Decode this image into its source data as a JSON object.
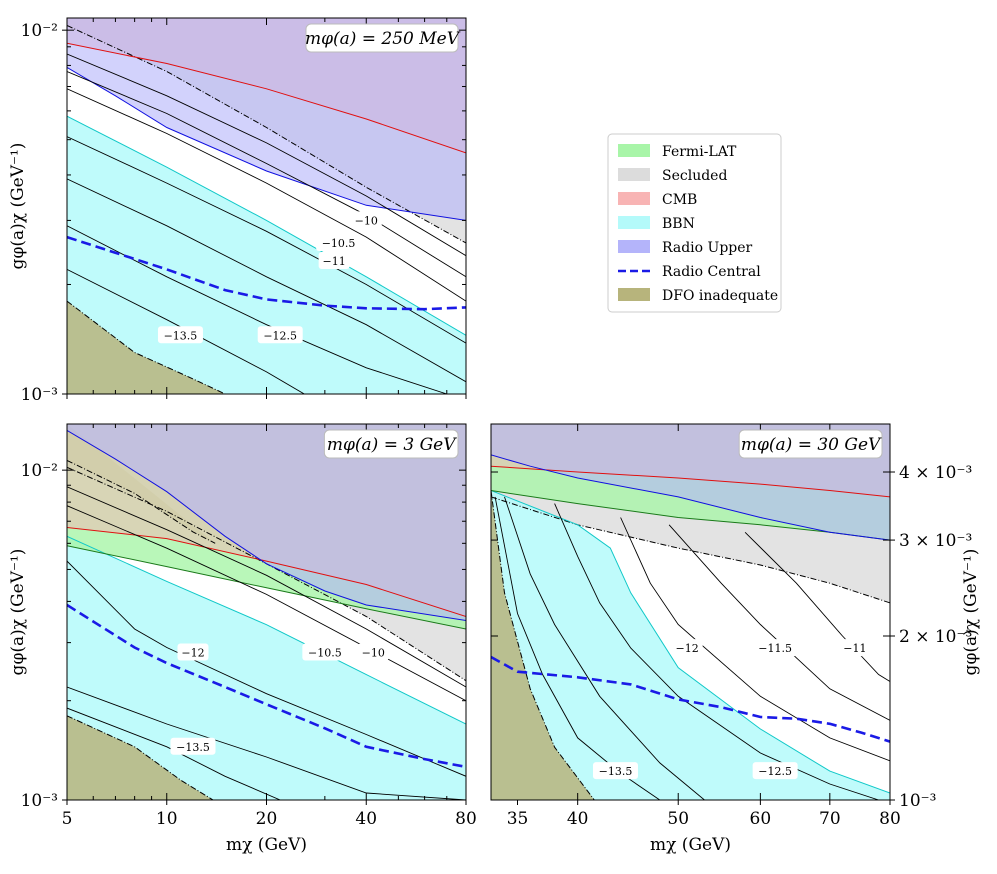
{
  "figure": {
    "xlabel": "mχ (GeV)",
    "ylabel": "gφ(a)χ (GeV⁻¹)",
    "ylabel_right": "gφ(a)χ (GeV⁻¹)"
  },
  "legend": {
    "placement": "upper-right (empty panel area)",
    "entries": [
      {
        "label": "Fermi-LAT",
        "color": "#a8f5a8",
        "kind": "patch"
      },
      {
        "label": "Secluded",
        "color": "#dcdcdc",
        "kind": "patch"
      },
      {
        "label": "CMB",
        "color": "#f8b4b4",
        "kind": "patch"
      },
      {
        "label": "BBN",
        "color": "#b4fafa",
        "kind": "patch"
      },
      {
        "label": "Radio Upper",
        "color": "#b4b4fa",
        "kind": "patch"
      },
      {
        "label": "Radio Central",
        "color": "#1a1ae6",
        "kind": "dashed-line"
      },
      {
        "label": "DFO inadequate",
        "color": "#b7b47c",
        "kind": "patch"
      }
    ]
  },
  "chart_data": [
    {
      "type": "area",
      "title": "",
      "annotation": "mφ(a) = 250 MeV",
      "xlabel": "mχ (GeV)",
      "ylabel": "gφ(a)χ (GeV⁻¹)",
      "xscale": "log",
      "yscale": "log",
      "xlim": [
        5,
        80
      ],
      "ylim": [
        0.001,
        0.0108
      ],
      "x_ticks": [
        5,
        10,
        20,
        40,
        80
      ],
      "x_tick_labels": [],
      "y_ticks": [
        0.001,
        0.01
      ],
      "y_tick_labels": [
        "10⁻³",
        "10⁻²"
      ],
      "regions": [
        {
          "name": "Fermi-LAT",
          "present": false
        },
        {
          "name": "CMB",
          "boundary_lower": {
            "x": [
              5,
              10,
              20,
              40,
              80
            ],
            "y": [
              0.0092,
              0.0081,
              0.0069,
              0.0057,
              0.0046
            ]
          },
          "extends_to": "top"
        },
        {
          "name": "Radio Upper",
          "boundary_lower": {
            "x": [
              5,
              7,
              10,
              20,
              40,
              80
            ],
            "y": [
              0.0079,
              0.0066,
              0.0054,
              0.0041,
              0.0033,
              0.003
            ]
          },
          "extends_to": "top"
        },
        {
          "name": "Secluded",
          "boundary_lower": {
            "x": [
              5,
              10,
              20,
              40,
              80
            ],
            "y": [
              0.0103,
              0.0077,
              0.0054,
              0.0037,
              0.0026
            ]
          },
          "extends_to": "top"
        },
        {
          "name": "BBN",
          "boundary_upper": {
            "x": [
              5,
              10,
              20,
              40,
              80
            ],
            "y": [
              0.0058,
              0.0042,
              0.003,
              0.0021,
              0.00145
            ]
          },
          "extends_to": "bottom"
        },
        {
          "name": "DFO inadequate",
          "boundary_upper": {
            "x": [
              5,
              8,
              12,
              15
            ],
            "y": [
              0.0018,
              0.0013,
              0.0011,
              0.001
            ]
          },
          "extends_to": "bottom"
        }
      ],
      "radio_central": {
        "x": [
          5,
          10,
          15,
          20,
          30,
          40,
          60,
          80
        ],
        "y": [
          0.0027,
          0.0022,
          0.00193,
          0.00182,
          0.00175,
          0.00172,
          0.00171,
          0.00173
        ]
      },
      "contours": [
        {
          "label": "−10",
          "label_pos": {
            "x": 40,
            "y": 0.003
          },
          "line": {
            "x": [
              5,
              10,
              20,
              40,
              80
            ],
            "y": [
              0.0086,
              0.0066,
              0.0049,
              0.0035,
              0.0024
            ]
          }
        },
        {
          "label": "−10.5",
          "label_pos": {
            "x": 33,
            "y": 0.0026
          },
          "line": {
            "x": [
              5,
              10,
              20,
              40,
              80
            ],
            "y": [
              0.0077,
              0.0059,
              0.0043,
              0.0031,
              0.0021
            ]
          }
        },
        {
          "label": "−11",
          "label_pos": {
            "x": 32,
            "y": 0.00232
          },
          "line": {
            "x": [
              5,
              10,
              20,
              40,
              80
            ],
            "y": [
              0.0069,
              0.0052,
              0.0038,
              0.0027,
              0.0018
            ]
          }
        },
        {
          "label": "",
          "line": {
            "x": [
              5,
              10,
              20,
              40,
              80
            ],
            "y": [
              0.0051,
              0.0038,
              0.0028,
              0.002,
              0.00138
            ]
          }
        },
        {
          "label": "",
          "line": {
            "x": [
              5,
              10,
              20,
              40,
              80
            ],
            "y": [
              0.0039,
              0.0029,
              0.0021,
              0.00155,
              0.00108
            ]
          }
        },
        {
          "label": "−12.5",
          "label_pos": {
            "x": 22,
            "y": 0.00145
          },
          "line": {
            "x": [
              5,
              10,
              20,
              40,
              70
            ],
            "y": [
              0.0029,
              0.0021,
              0.00155,
              0.00118,
              0.001
            ]
          }
        },
        {
          "label": "−13.5",
          "label_pos": {
            "x": 11,
            "y": 0.00145
          },
          "line": {
            "x": [
              5,
              10,
              20,
              26
            ],
            "y": [
              0.0022,
              0.0016,
              0.00115,
              0.001
            ]
          }
        }
      ]
    },
    {
      "type": "area",
      "title": "",
      "annotation": "mφ(a) = 3 GeV",
      "xlabel": "mχ (GeV)",
      "ylabel": "gφ(a)χ (GeV⁻¹)",
      "xscale": "log",
      "yscale": "log",
      "xlim": [
        5,
        80
      ],
      "ylim": [
        0.001,
        0.0138
      ],
      "x_ticks": [
        5,
        10,
        20,
        40,
        80
      ],
      "x_tick_labels": [
        "5",
        "10",
        "20",
        "40",
        "80"
      ],
      "y_ticks": [
        0.001,
        0.01
      ],
      "y_tick_labels": [
        "10⁻³",
        "10⁻²"
      ],
      "regions": [
        {
          "name": "Fermi-LAT",
          "boundary_lower": {
            "x": [
              5,
              10,
              20,
              40,
              80
            ],
            "y": [
              0.0059,
              0.0051,
              0.0044,
              0.0038,
              0.0033
            ]
          },
          "extends_to": "top"
        },
        {
          "name": "CMB",
          "boundary_lower": {
            "x": [
              5,
              10,
              20,
              40,
              80
            ],
            "y": [
              0.0067,
              0.0062,
              0.0053,
              0.0045,
              0.0036
            ]
          },
          "extends_to": "top"
        },
        {
          "name": "Radio Upper",
          "boundary_lower": {
            "x": [
              5,
              7,
              10,
              15,
              20,
              30,
              40,
              80
            ],
            "y": [
              0.0132,
              0.0108,
              0.0086,
              0.0063,
              0.0052,
              0.0043,
              0.0039,
              0.0035
            ]
          },
          "extends_to": "top"
        },
        {
          "name": "Secluded",
          "boundary_lower": {
            "x": [
              5,
              10,
              20,
              40,
              80
            ],
            "y": [
              0.0102,
              0.0075,
              0.0052,
              0.0036,
              0.0023
            ]
          },
          "extends_to": "top"
        },
        {
          "name": "BBN",
          "boundary_upper": {
            "x": [
              5,
              10,
              20,
              40,
              80
            ],
            "y": [
              0.0063,
              0.0046,
              0.0034,
              0.0024,
              0.0017
            ]
          },
          "extends_to": "bottom"
        },
        {
          "name": "DFO inadequate",
          "boundary_upper": {
            "x": [
              5,
              8,
              12,
              14
            ],
            "y": [
              0.0107,
              0.0085,
              0.0065,
              0.006
            ]
          },
          "extends_to": "upper-left"
        },
        {
          "name": "DFO inadequate",
          "boundary_upper": {
            "x": [
              5,
              8,
              11,
              13.8
            ],
            "y": [
              0.0018,
              0.00145,
              0.00115,
              0.001
            ]
          },
          "extends_to": "bottom"
        }
      ],
      "radio_central": {
        "x": [
          5,
          8,
          10,
          15,
          20,
          30,
          40,
          60,
          80
        ],
        "y": [
          0.0039,
          0.0029,
          0.0026,
          0.0022,
          0.00195,
          0.00165,
          0.00145,
          0.00133,
          0.00126
        ]
      },
      "contours": [
        {
          "label": "−10",
          "label_pos": {
            "x": 42,
            "y": 0.0028
          },
          "line": {
            "x": [
              5,
              10,
              20,
              40,
              80
            ],
            "y": [
              0.0089,
              0.0066,
              0.0048,
              0.0033,
              0.0022
            ]
          }
        },
        {
          "label": "−10.5",
          "label_pos": {
            "x": 30,
            "y": 0.0028
          },
          "line": {
            "x": [
              5,
              10,
              20,
              40,
              80
            ],
            "y": [
              0.0078,
              0.0058,
              0.0042,
              0.0029,
              0.002
            ]
          }
        },
        {
          "label": "−12",
          "label_pos": {
            "x": 12,
            "y": 0.0028
          },
          "line": {
            "x": [
              5,
              8,
              10,
              20,
              40,
              80
            ],
            "y": [
              0.0053,
              0.0033,
              0.0029,
              0.0021,
              0.00158,
              0.00118
            ]
          }
        },
        {
          "label": "",
          "line": {
            "x": [
              5,
              10,
              20,
              40,
              80
            ],
            "y": [
              0.0022,
              0.0017,
              0.00135,
              0.00105,
              0.001
            ]
          }
        },
        {
          "label": "−13.5",
          "label_pos": {
            "x": 12,
            "y": 0.00145
          },
          "line": {
            "x": [
              5,
              10,
              15,
              22
            ],
            "y": [
              0.0019,
              0.00145,
              0.00118,
              0.001
            ]
          }
        }
      ]
    },
    {
      "type": "area",
      "title": "",
      "annotation": "mφ(a) = 30 GeV",
      "xlabel": "mχ (GeV)",
      "ylabel": "gφ(a)χ (GeV⁻¹)",
      "yaxis_side": "right",
      "xscale": "log",
      "yscale": "log",
      "xlim": [
        33,
        80
      ],
      "ylim": [
        0.001,
        0.0049
      ],
      "x_ticks": [
        35,
        40,
        50,
        60,
        70,
        80
      ],
      "x_tick_labels": [
        "35",
        "40",
        "50",
        "60",
        "70",
        "80"
      ],
      "y_ticks": [
        0.001,
        0.002,
        0.003,
        0.004
      ],
      "y_tick_labels": [
        "10⁻³",
        "2 × 10⁻³",
        "3 × 10⁻³",
        "4 × 10⁻³"
      ],
      "regions": [
        {
          "name": "Fermi-LAT",
          "boundary_lower": {
            "x": [
              33,
              40,
              50,
              60,
              70,
              80
            ],
            "y": [
              0.0037,
              0.0035,
              0.0033,
              0.0032,
              0.0031,
              0.003
            ]
          },
          "extends_to": "top"
        },
        {
          "name": "CMB",
          "boundary_lower": {
            "x": [
              33,
              40,
              50,
              60,
              70,
              80
            ],
            "y": [
              0.0041,
              0.004,
              0.0039,
              0.0038,
              0.0037,
              0.0036
            ]
          },
          "extends_to": "top"
        },
        {
          "name": "Radio Upper",
          "boundary_lower": {
            "x": [
              33,
              36,
              40,
              50,
              60,
              70,
              80
            ],
            "y": [
              0.0043,
              0.0041,
              0.0039,
              0.0036,
              0.0033,
              0.0031,
              0.003
            ]
          },
          "extends_to": "top"
        },
        {
          "name": "Secluded",
          "boundary_lower": {
            "x": [
              33,
              40,
              50,
              60,
              70,
              80
            ],
            "y": [
              0.0036,
              0.0032,
              0.0029,
              0.0027,
              0.0025,
              0.0023
            ]
          },
          "extends_to": "top"
        },
        {
          "name": "BBN",
          "boundary_upper": {
            "x": [
              33,
              40,
              43,
              45,
              50,
              60,
              70,
              80
            ],
            "y": [
              0.0037,
              0.0032,
              0.0029,
              0.0024,
              0.00175,
              0.00135,
              0.00113,
              0.00103
            ]
          },
          "extends_to": "bottom"
        },
        {
          "name": "DFO inadequate",
          "boundary_upper": {
            "x": [
              33,
              34,
              36,
              38,
              41.5
            ],
            "y": [
              0.0037,
              0.0024,
              0.0016,
              0.00125,
              0.001
            ]
          },
          "extends_to": "bottom"
        }
      ],
      "radio_central": {
        "x": [
          33,
          35,
          40,
          45,
          50,
          55,
          60,
          65,
          70,
          75,
          80
        ],
        "y": [
          0.00183,
          0.00172,
          0.00168,
          0.00163,
          0.00153,
          0.00148,
          0.00142,
          0.00141,
          0.00138,
          0.00133,
          0.00128
        ]
      },
      "contours": [
        {
          "label": "−11",
          "label_pos": {
            "x": 74,
            "y": 0.0019
          },
          "line": {
            "x": [
              58,
              65,
              72,
              78,
              80
            ],
            "y": [
              0.0031,
              0.0025,
              0.002,
              0.0017,
              0.00165
            ]
          }
        },
        {
          "label": "−11.5",
          "label_pos": {
            "x": 62,
            "y": 0.0019
          },
          "line": {
            "x": [
              49,
              55,
              60,
              70,
              80
            ],
            "y": [
              0.0032,
              0.0025,
              0.0021,
              0.0016,
              0.0014
            ]
          }
        },
        {
          "label": "−12",
          "label_pos": {
            "x": 51,
            "y": 0.0019
          },
          "line": {
            "x": [
              44,
              47,
              50,
              60,
              70,
              80
            ],
            "y": [
              0.0033,
              0.0025,
              0.0021,
              0.00155,
              0.0013,
              0.00118
            ]
          }
        },
        {
          "label": "−12.5",
          "label_pos": {
            "x": 62,
            "y": 0.00113
          },
          "line": {
            "x": [
              38,
              40,
              42,
              45,
              50,
              60,
              70,
              78
            ],
            "y": [
              0.0035,
              0.0028,
              0.0023,
              0.0019,
              0.00155,
              0.00122,
              0.00107,
              0.001
            ]
          }
        },
        {
          "label": "",
          "line": {
            "x": [
              34,
              36,
              38,
              42,
              48,
              53
            ],
            "y": [
              0.0036,
              0.0026,
              0.0021,
              0.00155,
              0.00117,
              0.001
            ]
          }
        },
        {
          "label": "−13.5",
          "label_pos": {
            "x": 43.5,
            "y": 0.00113
          },
          "line": {
            "x": [
              33.3,
              35,
              37,
              40,
              44,
              48
            ],
            "y": [
              0.0036,
              0.0022,
              0.0017,
              0.0013,
              0.00112,
              0.001
            ]
          }
        }
      ]
    }
  ]
}
